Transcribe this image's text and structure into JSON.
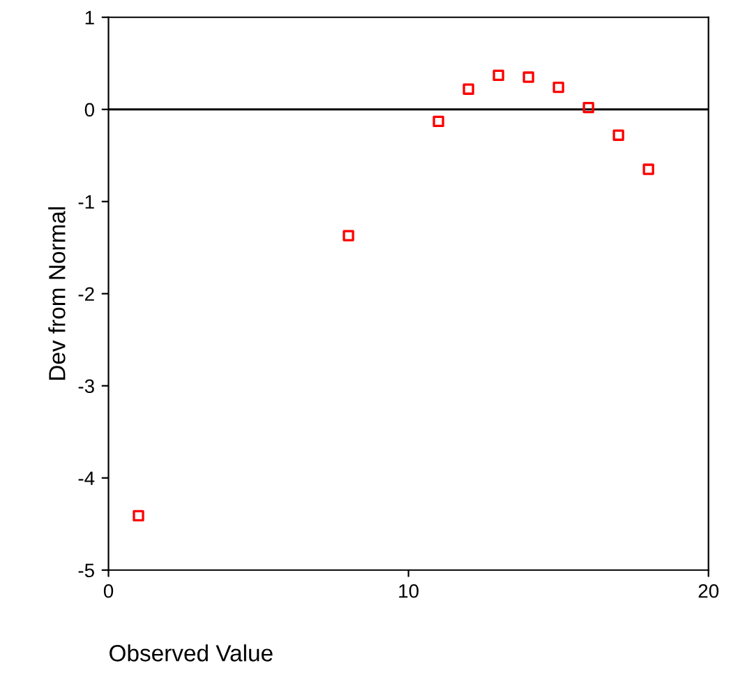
{
  "chart_data": {
    "type": "scatter",
    "xlabel": "Observed Value",
    "ylabel": "Dev from Normal",
    "x": [
      1,
      8,
      11,
      12,
      13,
      14,
      15,
      16,
      17,
      18
    ],
    "series": [
      {
        "color": "#ff0000",
        "values": [
          -4.41,
          -1.37,
          -0.13,
          0.22,
          0.37,
          0.35,
          0.24,
          0.02,
          -0.28,
          -0.65
        ]
      }
    ],
    "marker": "square",
    "xlim": [
      0,
      20
    ],
    "xticks": [
      0,
      10,
      20
    ],
    "ylim": [
      -5,
      1
    ],
    "yticks": [
      -5,
      -4,
      -3,
      -2,
      -1,
      0,
      1
    ],
    "ref_lines": [
      {
        "axis": "y",
        "value": 0,
        "color": "#000000"
      }
    ],
    "grid": false,
    "legend": false
  }
}
